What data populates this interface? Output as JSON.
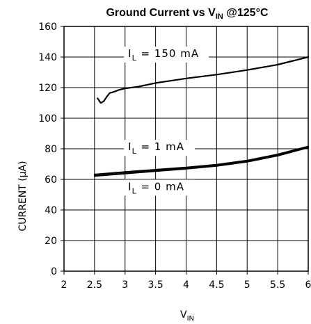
{
  "chart_data": {
    "type": "line",
    "title": {
      "prefix": "Ground Current vs V",
      "subscript": "IN",
      "suffix": " @125°C"
    },
    "xlabel": {
      "main": "V",
      "subscript": "IN"
    },
    "ylabel": "CURRENT (μA)",
    "xlim": [
      2,
      6
    ],
    "ylim": [
      0,
      160
    ],
    "x_ticks": [
      {
        "value": 2,
        "label": "2"
      },
      {
        "value": 2.5,
        "label": "2.5"
      },
      {
        "value": 3,
        "label": "3"
      },
      {
        "value": 3.5,
        "label": "3.5"
      },
      {
        "value": 4,
        "label": "4"
      },
      {
        "value": 4.5,
        "label": "4.5"
      },
      {
        "value": 5,
        "label": "5"
      },
      {
        "value": 5.5,
        "label": "5.5"
      },
      {
        "value": 6,
        "label": "6"
      }
    ],
    "y_ticks": [
      {
        "value": 0,
        "label": "0"
      },
      {
        "value": 20,
        "label": "20"
      },
      {
        "value": 40,
        "label": "40"
      },
      {
        "value": 60,
        "label": "60"
      },
      {
        "value": 80,
        "label": "80"
      },
      {
        "value": 100,
        "label": "100"
      },
      {
        "value": 120,
        "label": "120"
      },
      {
        "value": 140,
        "label": "140"
      },
      {
        "value": 160,
        "label": "160"
      }
    ],
    "grid": true,
    "series": [
      {
        "label": {
          "main": "I",
          "subscript": "L",
          "rest": " = 150 mA"
        },
        "x": [
          2.55,
          2.6,
          2.65,
          2.7,
          2.75,
          2.8,
          2.9,
          3.0,
          3.2,
          3.5,
          4.0,
          4.5,
          5.0,
          5.5,
          6.0
        ],
        "y": [
          113,
          110,
          111,
          114,
          116.5,
          117,
          118.5,
          119.5,
          120.5,
          123,
          126,
          128.5,
          131.5,
          135,
          140
        ]
      },
      {
        "label": {
          "main": "I",
          "subscript": "L",
          "rest": " = 1 mA"
        },
        "x": [
          2.5,
          3.0,
          3.5,
          4.0,
          4.5,
          5.0,
          5.5,
          6.0
        ],
        "y": [
          63.2,
          64.8,
          66.3,
          67.8,
          69.6,
          72.3,
          76.3,
          81.5
        ]
      },
      {
        "label": {
          "main": "I",
          "subscript": "L",
          "rest": " = 0 mA"
        },
        "x": [
          2.5,
          3.0,
          3.5,
          4.0,
          4.5,
          5.0,
          5.5,
          6.0
        ],
        "y": [
          62.2,
          63.8,
          65.4,
          66.9,
          68.8,
          71.5,
          75.5,
          80.8
        ]
      }
    ]
  }
}
